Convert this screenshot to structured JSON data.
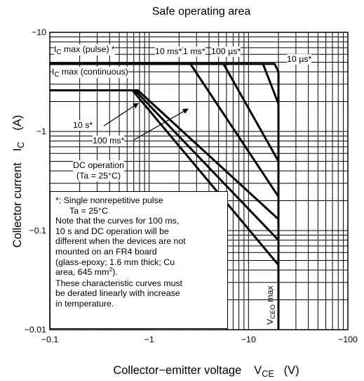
{
  "chart_data": {
    "type": "line",
    "title": "Safe operating area",
    "xlabel": "Collector−emitter voltage",
    "xlabel_symbol": "V",
    "xlabel_symbol_sub": "CE",
    "xlabel_unit": "(V)",
    "ylabel": "Collector current",
    "ylabel_symbol": "I",
    "ylabel_symbol_sub": "C",
    "ylabel_unit": "(A)",
    "x_scale": "log",
    "y_scale": "log",
    "xlim": [
      -0.1,
      -100
    ],
    "ylim": [
      -0.01,
      -10
    ],
    "x_ticks": [
      "−0.1",
      "−1",
      "−10",
      "−100"
    ],
    "y_ticks": [
      "−10",
      "−1",
      "−0.1",
      "−0.01"
    ],
    "grid": true,
    "series": [
      {
        "name": "",
        "x": [
          -0.1,
          -18.3,
          -20,
          -20
        ],
        "y": [
          -4.8,
          -4.8,
          -4.0,
          -1.0
        ]
      },
      {
        "name": "",
        "x": [
          -0.1,
          -14.0,
          -20,
          -20
        ],
        "y": [
          -4.8,
          -4.8,
          -1.9,
          -1.0
        ]
      },
      {
        "name": "",
        "x": [
          -0.1,
          -5.6,
          -20
        ],
        "y": [
          -4.8,
          -4.8,
          -0.5
        ]
      },
      {
        "name": "",
        "x": [
          -0.1,
          -2.6,
          -20
        ],
        "y": [
          -4.8,
          -4.8,
          -0.22
        ]
      },
      {
        "name": "",
        "x": [
          -0.1,
          -0.77,
          -20
        ],
        "y": [
          -2.6,
          -2.6,
          -0.13
        ]
      },
      {
        "name": "",
        "x": [
          -0.1,
          -0.72,
          -20
        ],
        "y": [
          -2.6,
          -2.6,
          -0.08
        ]
      },
      {
        "name": "",
        "x": [
          -0.1,
          -0.68,
          -20
        ],
        "y": [
          -2.6,
          -2.6,
          -0.045
        ]
      }
    ],
    "vline": {
      "x": -20,
      "label": "V",
      "label_sub": "CEO",
      "label_suffix": " max"
    },
    "annotations": {
      "ic_max_pulse": {
        "text": "I",
        "sub": "C",
        "suffix": " max (pulse) *"
      },
      "ic_max_continuous": {
        "text": "I",
        "sub": "C",
        "suffix": " max (continuous)"
      },
      "pulse_10ms": "10 ms*",
      "pulse_1ms": "1 ms*",
      "pulse_100us": "100 µs*",
      "pulse_10us": "10 µs*",
      "pulse_10s": "10 s*",
      "pulse_100ms": "100 ms*",
      "dc_operation_line1": "DC operation",
      "dc_operation_line2": "(Ta = 25°C)"
    },
    "note": {
      "line1": "*:  Single nonrepetitive pulse",
      "line2": "Ta = 25°C",
      "line3": "Note that the curves for 100 ms,",
      "line4": "10 s and DC operation will be",
      "line5": "different when the devices are not",
      "line6": "mounted on an FR4 board",
      "line7": "(glass-epoxy; 1.6 mm thick; Cu",
      "line8a": "area, 645 mm",
      "line8sup": "2",
      "line8b": ").",
      "line9": "These characteristic curves must",
      "line10": "be derated linearly with increase",
      "line11": "in temperature."
    }
  }
}
